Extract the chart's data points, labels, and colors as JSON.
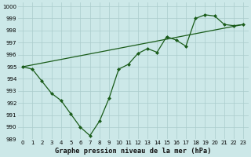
{
  "title": "Graphe pression niveau de la mer (hPa)",
  "background_color": "#cce8e8",
  "grid_color": "#aacccc",
  "line_color": "#1a5c1a",
  "xlim": [
    -0.5,
    23.5
  ],
  "ylim": [
    989,
    1000.3
  ],
  "yticks": [
    989,
    990,
    991,
    992,
    993,
    994,
    995,
    996,
    997,
    998,
    999,
    1000
  ],
  "xticks": [
    0,
    1,
    2,
    3,
    4,
    5,
    6,
    7,
    8,
    9,
    10,
    11,
    12,
    13,
    14,
    15,
    16,
    17,
    18,
    19,
    20,
    21,
    22,
    23
  ],
  "series1_x": [
    0,
    1,
    2,
    3,
    4,
    5,
    6,
    7,
    8,
    9,
    10,
    11,
    12,
    13,
    14,
    15,
    16,
    17,
    18,
    19,
    20,
    21,
    22,
    23
  ],
  "series1_y": [
    995.0,
    994.8,
    993.8,
    992.8,
    992.2,
    991.1,
    990.0,
    989.3,
    990.5,
    992.4,
    994.8,
    995.2,
    996.1,
    996.5,
    996.2,
    997.5,
    997.2,
    996.7,
    999.0,
    999.3,
    999.2,
    998.5,
    998.4,
    998.5
  ],
  "series2_x": [
    0,
    23
  ],
  "series2_y": [
    995.0,
    998.5
  ],
  "marker_size": 2.5,
  "linewidth": 0.9,
  "tick_fontsize": 5.0,
  "xlabel_fontsize": 6.2
}
